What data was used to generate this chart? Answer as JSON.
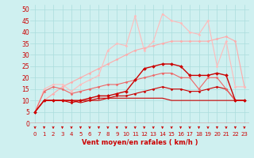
{
  "background_color": "#cff0f0",
  "grid_color": "#aadddd",
  "xlabel": "Vent moyen/en rafales ( km/h )",
  "xlim": [
    -0.5,
    23.5
  ],
  "ylim": [
    0,
    52
  ],
  "yticks": [
    0,
    5,
    10,
    15,
    20,
    25,
    30,
    35,
    40,
    45,
    50
  ],
  "xticks": [
    0,
    1,
    2,
    3,
    4,
    5,
    6,
    7,
    8,
    9,
    10,
    11,
    12,
    13,
    14,
    15,
    16,
    17,
    18,
    19,
    20,
    21,
    22,
    23
  ],
  "series": [
    {
      "x": [
        0,
        1,
        2,
        3,
        4,
        5,
        6,
        7,
        8,
        9,
        10,
        11,
        12,
        13,
        14,
        15,
        16,
        17,
        18,
        19,
        20,
        21,
        22,
        23
      ],
      "y": [
        5,
        10,
        10,
        10,
        10,
        9,
        10,
        10,
        11,
        11,
        11,
        11,
        11,
        11,
        11,
        10,
        10,
        10,
        10,
        10,
        10,
        10,
        10,
        10
      ],
      "color": "#cc0000",
      "linewidth": 0.8,
      "marker": null,
      "markersize": 0,
      "zorder": 3
    },
    {
      "x": [
        0,
        1,
        2,
        3,
        4,
        5,
        6,
        7,
        8,
        9,
        10,
        11,
        12,
        13,
        14,
        15,
        16,
        17,
        18,
        19,
        20,
        21,
        22,
        23
      ],
      "y": [
        5,
        10,
        10,
        10,
        9,
        10,
        10,
        11,
        11,
        12,
        12,
        13,
        14,
        15,
        16,
        15,
        15,
        14,
        14,
        15,
        16,
        15,
        10,
        10
      ],
      "color": "#cc0000",
      "linewidth": 0.8,
      "marker": "D",
      "markersize": 1.5,
      "zorder": 3
    },
    {
      "x": [
        0,
        1,
        2,
        3,
        4,
        5,
        6,
        7,
        8,
        9,
        10,
        11,
        12,
        13,
        14,
        15,
        16,
        17,
        18,
        19,
        20,
        21,
        22,
        23
      ],
      "y": [
        5,
        10,
        10,
        10,
        10,
        10,
        11,
        12,
        12,
        13,
        14,
        19,
        24,
        25,
        26,
        26,
        25,
        21,
        21,
        21,
        22,
        21,
        10,
        10
      ],
      "color": "#cc0000",
      "linewidth": 1.0,
      "marker": "D",
      "markersize": 2.0,
      "zorder": 4
    },
    {
      "x": [
        0,
        1,
        2,
        3,
        4,
        5,
        6,
        7,
        8,
        9,
        10,
        11,
        12,
        13,
        14,
        15,
        16,
        17,
        18,
        19,
        20,
        21,
        22,
        23
      ],
      "y": [
        5,
        14,
        16,
        15,
        13,
        14,
        15,
        16,
        17,
        17,
        18,
        19,
        20,
        21,
        22,
        22,
        20,
        20,
        15,
        20,
        20,
        15,
        10,
        10
      ],
      "color": "#ee6666",
      "linewidth": 0.8,
      "marker": "D",
      "markersize": 1.5,
      "zorder": 3
    },
    {
      "x": [
        0,
        1,
        2,
        3,
        4,
        5,
        6,
        7,
        8,
        9,
        10,
        11,
        12,
        13,
        14,
        15,
        16,
        17,
        18,
        19,
        20,
        21,
        22,
        23
      ],
      "y": [
        5,
        10,
        13,
        16,
        18,
        20,
        22,
        24,
        26,
        28,
        30,
        32,
        33,
        34,
        35,
        36,
        36,
        36,
        36,
        36,
        37,
        38,
        36,
        16
      ],
      "color": "#ffaaaa",
      "linewidth": 0.8,
      "marker": "D",
      "markersize": 1.5,
      "zorder": 2
    },
    {
      "x": [
        0,
        1,
        2,
        3,
        4,
        5,
        6,
        7,
        8,
        9,
        10,
        11,
        12,
        13,
        14,
        15,
        16,
        17,
        18,
        19,
        20,
        21,
        22,
        23
      ],
      "y": [
        5,
        15,
        17,
        17,
        14,
        17,
        19,
        21,
        32,
        35,
        34,
        47,
        32,
        36,
        48,
        45,
        44,
        40,
        39,
        45,
        25,
        36,
        16,
        16
      ],
      "color": "#ffbbbb",
      "linewidth": 0.8,
      "marker": "D",
      "markersize": 1.5,
      "zorder": 2
    }
  ],
  "arrow_color": "#cc0000",
  "tick_fontsize": 5,
  "xlabel_fontsize": 6,
  "xlabel_color": "#cc0000",
  "tick_label_color": "#cc0000",
  "ytick_fontsize": 5.5
}
